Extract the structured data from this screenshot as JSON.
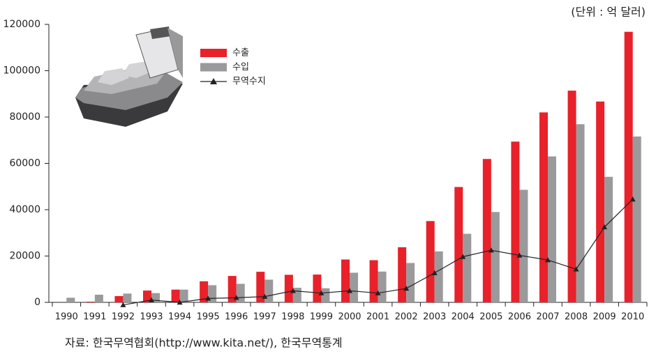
{
  "unit_note": "(단위 : 억 달러)",
  "source": "자료: 한국무역협회(http://www.kita.net/), 한국무역통계",
  "chart_data": {
    "type": "bar",
    "categories": [
      "1990",
      "1991",
      "1992",
      "1993",
      "1994",
      "1995",
      "1996",
      "1997",
      "1998",
      "1999",
      "2000",
      "2001",
      "2002",
      "2003",
      "2004",
      "2005",
      "2006",
      "2007",
      "2008",
      "2009",
      "2010"
    ],
    "series": [
      {
        "name": "수출",
        "type": "bar",
        "color": "#e8212a",
        "values": [
          0,
          300,
          2700,
          5100,
          5500,
          9100,
          11400,
          13200,
          11900,
          12000,
          18500,
          18200,
          23800,
          35100,
          49800,
          61900,
          69400,
          82000,
          91400,
          86700,
          116800
        ]
      },
      {
        "name": "수입",
        "type": "bar",
        "color": "#9a9a9c",
        "values": [
          2000,
          3300,
          3800,
          4000,
          5500,
          7400,
          8000,
          9800,
          6300,
          6100,
          12800,
          13300,
          17000,
          22000,
          29600,
          39000,
          48600,
          63000,
          76900,
          54200,
          71600
        ]
      },
      {
        "name": "무역수지",
        "type": "line",
        "color": "#222222",
        "values": [
          null,
          null,
          -1100,
          1000,
          0,
          1700,
          2000,
          2500,
          5000,
          4000,
          5000,
          4000,
          6000,
          12700,
          19700,
          22500,
          20300,
          18300,
          14300,
          32500,
          44500
        ]
      }
    ],
    "ylim": [
      0,
      120000
    ],
    "yticks": [
      0,
      20000,
      40000,
      60000,
      80000,
      100000,
      120000
    ]
  }
}
